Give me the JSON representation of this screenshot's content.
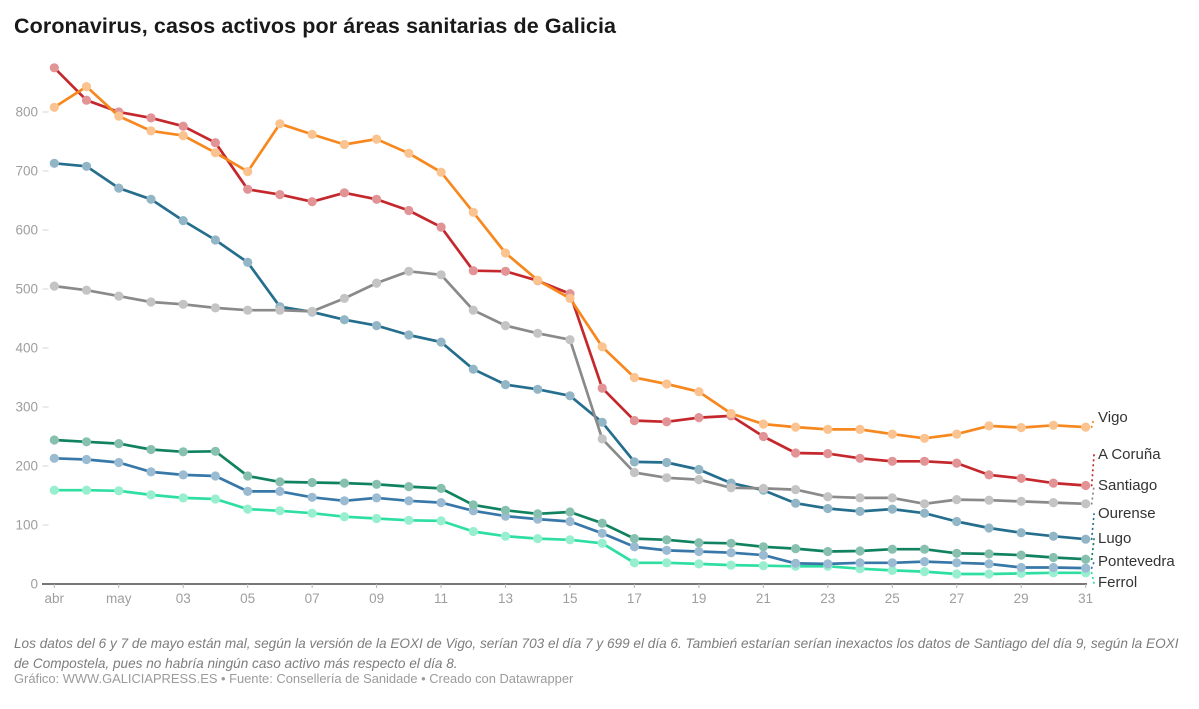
{
  "title": "Coronavirus, casos activos por áreas sanitarias de Galicia",
  "footnote": "Los datos del 6 y 7 de mayo están mal, según la versión de la EOXI de Vigo, serían 703 el día 7 y 699 el día 6. Tambień estarían serían inexactos los datos de Santiago del día 9, según la EOXI de Compostela, pues no habría ningún caso activo más respecto el día 8.",
  "credit": "Gráfico: WWW.GALICIAPRESS.ES • Fuente: Consellería de Sanidade • Creado con Datawrapper",
  "chart_data": {
    "type": "line",
    "title": "Coronavirus, casos activos por áreas sanitarias de Galicia",
    "xlabel": "",
    "ylabel": "",
    "ylim": [
      0,
      900
    ],
    "grid": false,
    "legend_position": "right-direct-labels",
    "points_per_series": 33,
    "x_tick_labels": [
      "abr",
      "may",
      "03",
      "05",
      "07",
      "09",
      "11",
      "13",
      "15",
      "17",
      "19",
      "21",
      "23",
      "25",
      "27",
      "29",
      "31"
    ],
    "x_tick_indices": [
      0,
      2,
      4,
      6,
      8,
      10,
      12,
      14,
      16,
      18,
      20,
      22,
      24,
      26,
      28,
      30,
      32
    ],
    "y_ticks": [
      0,
      100,
      200,
      300,
      400,
      500,
      600,
      700,
      800
    ],
    "series": [
      {
        "name": "Vigo",
        "color": "#f6881f",
        "label_y": 422,
        "values": [
          808,
          843,
          793,
          768,
          760,
          731,
          699,
          780,
          762,
          745,
          754,
          730,
          698,
          630,
          561,
          515,
          484,
          402,
          350,
          339,
          326,
          289,
          271,
          266,
          262,
          262,
          254,
          247,
          254,
          268,
          265,
          269,
          266
        ]
      },
      {
        "name": "A Coruña",
        "color": "#c4282d",
        "label_y": 459,
        "values": [
          875,
          820,
          800,
          790,
          776,
          748,
          669,
          660,
          648,
          663,
          652,
          633,
          605,
          531,
          530,
          514,
          492,
          332,
          277,
          275,
          282,
          285,
          250,
          222,
          221,
          213,
          208,
          208,
          205,
          185,
          179,
          171,
          167
        ]
      },
      {
        "name": "Santiago",
        "color": "#8a8a8a",
        "label_y": 490,
        "values": [
          505,
          498,
          488,
          478,
          474,
          468,
          464,
          464,
          462,
          484,
          510,
          530,
          524,
          464,
          438,
          425,
          414,
          246,
          189,
          180,
          177,
          163,
          162,
          160,
          148,
          146,
          146,
          136,
          143,
          142,
          140,
          138,
          136
        ]
      },
      {
        "name": "Ourense",
        "color": "#256e8d",
        "label_y": 518,
        "values": [
          713,
          708,
          671,
          652,
          616,
          583,
          545,
          470,
          461,
          448,
          438,
          422,
          410,
          364,
          338,
          330,
          319,
          274,
          207,
          206,
          194,
          171,
          159,
          137,
          128,
          123,
          127,
          120,
          106,
          95,
          87,
          81,
          76
        ]
      },
      {
        "name": "Lugo",
        "color": "#11825f",
        "label_y": 543,
        "values": [
          244,
          241,
          238,
          228,
          224,
          225,
          183,
          173,
          172,
          171,
          169,
          165,
          162,
          134,
          125,
          119,
          122,
          103,
          77,
          75,
          70,
          69,
          63,
          60,
          55,
          56,
          59,
          59,
          52,
          51,
          49,
          45,
          42
        ]
      },
      {
        "name": "Pontevedra",
        "color": "#3878a8",
        "label_y": 566,
        "values": [
          213,
          211,
          206,
          190,
          185,
          183,
          157,
          157,
          147,
          141,
          146,
          141,
          138,
          124,
          115,
          110,
          106,
          86,
          63,
          57,
          55,
          53,
          49,
          35,
          34,
          36,
          36,
          38,
          36,
          34,
          28,
          28,
          27
        ]
      },
      {
        "name": "Ferrol",
        "color": "#2fdfa2",
        "label_y": 587,
        "values": [
          159,
          159,
          158,
          151,
          146,
          144,
          127,
          124,
          120,
          114,
          111,
          108,
          107,
          89,
          81,
          77,
          75,
          69,
          36,
          36,
          34,
          32,
          31,
          30,
          30,
          26,
          23,
          21,
          17,
          17,
          18,
          19,
          19
        ]
      }
    ]
  }
}
